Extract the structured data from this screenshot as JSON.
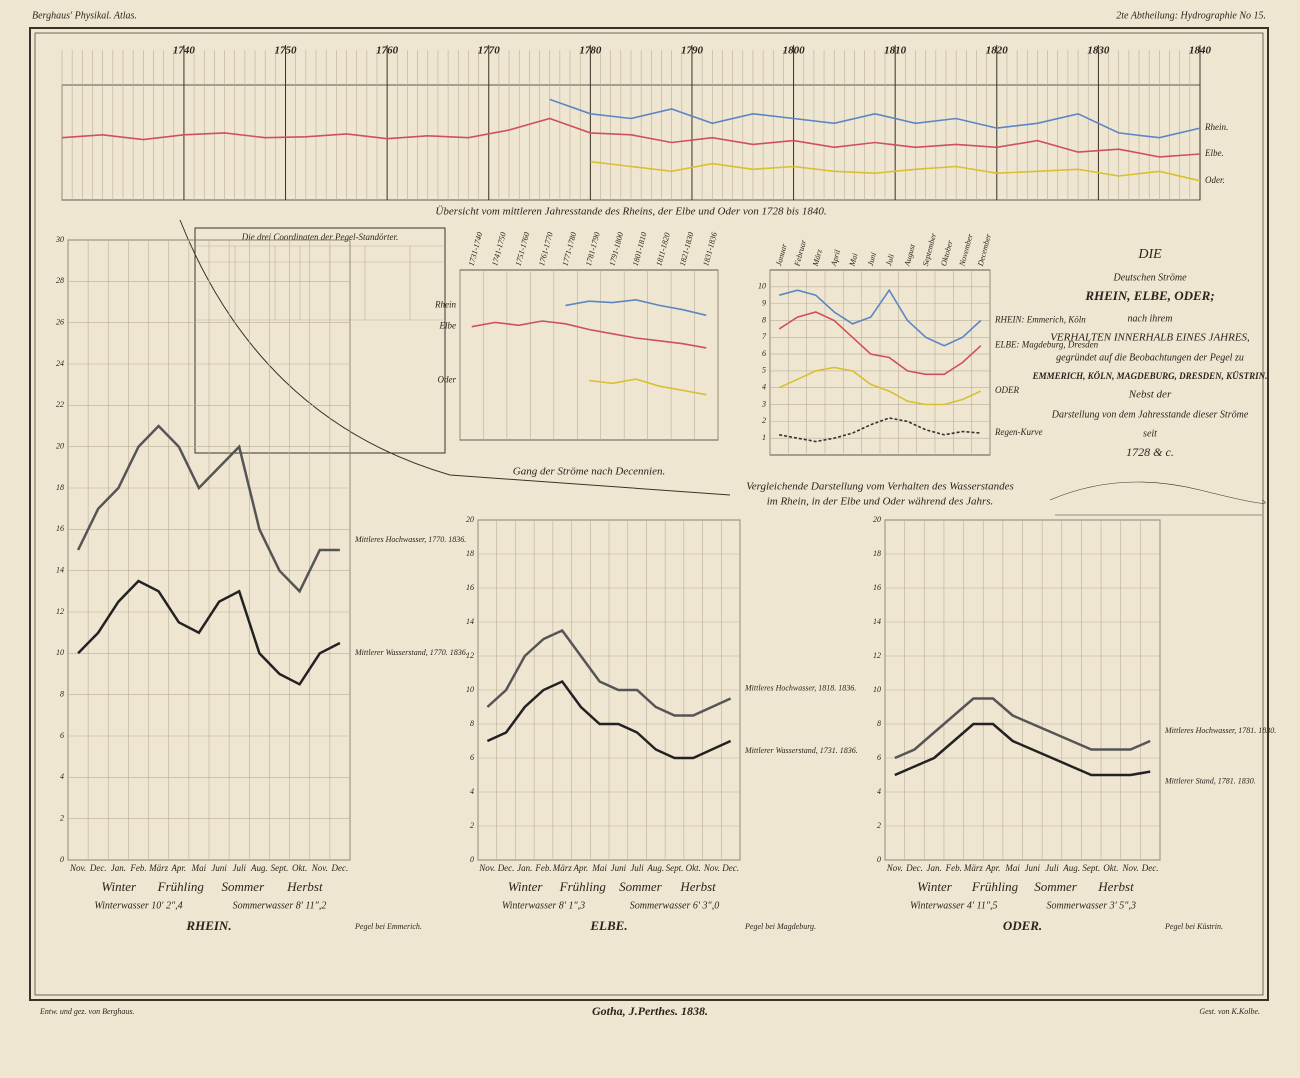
{
  "header": {
    "left": "Berghaus' Physikal. Atlas.",
    "right": "2te Abtheilung: Hydrographie No 15."
  },
  "footer": {
    "left": "Entw. und gez. von Berghaus.",
    "center": "Gotha, J.Perthes. 1838.",
    "right": "Gest. von K.Kolbe."
  },
  "title_block": {
    "lines": [
      "DIE",
      "Deutschen Ströme",
      "RHEIN, ELBE, ODER;",
      "nach ihrem",
      "VERHALTEN INNERHALB EINES JAHRES,",
      "gegründet auf die Beobachtungen der Pegel zu",
      "EMMERICH, KÖLN, MAGDEBURG, DRESDEN, KÜSTRIN.",
      "Nebst der",
      "Darstellung von dem Jahresstande dieser Ströme",
      "seit",
      "1728 & c."
    ]
  },
  "coordinates_table": {
    "title": "Die drei Coordinaten der Pegel-Standörter."
  },
  "chart_data": [
    {
      "type": "line",
      "title": "Übersicht vom mittleren Jahresstande des Rheins, der Elbe und Oder von 1728 bis 1840.",
      "x": [
        1728,
        1732,
        1736,
        1740,
        1744,
        1748,
        1752,
        1756,
        1760,
        1764,
        1768,
        1772,
        1776,
        1780,
        1784,
        1788,
        1792,
        1796,
        1800,
        1804,
        1808,
        1812,
        1816,
        1820,
        1824,
        1828,
        1832,
        1836,
        1840
      ],
      "xlim": [
        1728,
        1840
      ],
      "xticks": [
        1740,
        1750,
        1760,
        1770,
        1780,
        1790,
        1800,
        1810,
        1820,
        1830,
        1840
      ],
      "ylim": [
        0,
        12
      ],
      "series": [
        {
          "name": "Rhein.",
          "color": "#5b86c4",
          "values": [
            null,
            null,
            null,
            null,
            null,
            null,
            null,
            null,
            null,
            null,
            null,
            null,
            10.5,
            9,
            8.5,
            9.5,
            8,
            9,
            8.5,
            8,
            9,
            8,
            8.5,
            7.5,
            8,
            9,
            7,
            6.5,
            7.5
          ]
        },
        {
          "name": "Elbe.",
          "color": "#d0505a",
          "values": [
            6.5,
            6.8,
            6.3,
            6.8,
            7,
            6.5,
            6.6,
            6.9,
            6.4,
            6.7,
            6.5,
            7.3,
            8.5,
            7,
            6.8,
            6,
            6.5,
            5.8,
            6.2,
            5.5,
            6,
            5.5,
            5.8,
            5.5,
            6.2,
            5,
            5.3,
            4.5,
            4.8
          ]
        },
        {
          "name": "Oder.",
          "color": "#d8c030",
          "values": [
            null,
            null,
            null,
            null,
            null,
            null,
            null,
            null,
            null,
            null,
            null,
            null,
            null,
            4,
            3.5,
            3,
            3.8,
            3.2,
            3.5,
            3,
            2.8,
            3.2,
            3.5,
            2.8,
            3,
            3.2,
            2.5,
            3,
            2
          ]
        }
      ]
    },
    {
      "type": "line",
      "title": [
        "Gang der Ströme nach Decennien."
      ],
      "categories": [
        "1731-1740",
        "1741-1750",
        "1751-1760",
        "1761-1770",
        "1771-1780",
        "1781-1790",
        "1791-1800",
        "1801-1810",
        "1811-1820",
        "1821-1830",
        "1831-1836"
      ],
      "ylim": [
        0,
        12
      ],
      "series": [
        {
          "name": "Rhein",
          "color": "#5b86c4",
          "values": [
            null,
            null,
            null,
            null,
            9.5,
            9.8,
            9.7,
            9.9,
            9.5,
            9.2,
            8.8
          ]
        },
        {
          "name": "Elbe",
          "color": "#d0505a",
          "values": [
            8,
            8.3,
            8.1,
            8.4,
            8.2,
            7.8,
            7.5,
            7.2,
            7,
            6.8,
            6.5
          ]
        },
        {
          "name": "Oder",
          "color": "#d8c030",
          "values": [
            null,
            null,
            null,
            null,
            null,
            4.2,
            4,
            4.3,
            3.8,
            3.5,
            3.2
          ]
        }
      ]
    },
    {
      "type": "line",
      "title": [
        "Vergleichende Darstellung vom Verhalten des Wasserstandes",
        "im Rhein, in der Elbe und Oder während des Jahrs."
      ],
      "categories": [
        "Januar",
        "Februar",
        "März",
        "April",
        "Mai",
        "Juni",
        "Juli",
        "August",
        "September",
        "Oktober",
        "November",
        "December"
      ],
      "ylim": [
        0,
        11
      ],
      "yticks": [
        1,
        2,
        3,
        4,
        5,
        6,
        7,
        8,
        9,
        10
      ],
      "series": [
        {
          "name": "RHEIN: Emmerich, Köln",
          "color": "#5b86c4",
          "values": [
            9.5,
            9.8,
            9.5,
            8.5,
            7.8,
            8.2,
            9.8,
            8,
            7,
            6.5,
            7,
            8
          ]
        },
        {
          "name": "ELBE: Magdeburg, Dresden",
          "color": "#d0505a",
          "values": [
            7.5,
            8.2,
            8.5,
            8,
            7,
            6,
            5.8,
            5,
            4.8,
            4.8,
            5.5,
            6.5
          ]
        },
        {
          "name": "ODER",
          "color": "#d8c030",
          "values": [
            4,
            4.5,
            5,
            5.2,
            5,
            4.2,
            3.8,
            3.2,
            3,
            3,
            3.3,
            3.8
          ]
        },
        {
          "name": "Regen-Kurve",
          "color": "#333333",
          "values": [
            1.2,
            1,
            0.8,
            1,
            1.3,
            1.8,
            2.2,
            2,
            1.5,
            1.2,
            1.4,
            1.3
          ]
        }
      ]
    },
    {
      "type": "line",
      "title": "RHEIN.",
      "gauge": "Pegel bei Emmerich.",
      "note": [
        "Winterwasser 10′ 2″,4",
        "Sommerwasser 8′ 11″,2"
      ],
      "seasons": [
        "Winter",
        "Frühling",
        "Sommer",
        "Herbst"
      ],
      "categories": [
        "Nov.",
        "Dec.",
        "Jan.",
        "Feb.",
        "März",
        "Apr.",
        "Mai",
        "Juni",
        "Juli",
        "Aug.",
        "Sept.",
        "Okt.",
        "Nov.",
        "Dec."
      ],
      "ylim": [
        0,
        30
      ],
      "yticks": [
        0,
        2,
        4,
        6,
        8,
        10,
        12,
        14,
        16,
        18,
        20,
        22,
        24,
        26,
        28,
        30
      ],
      "series": [
        {
          "name": "Mittleres Hochwasser, 1770. 1836.",
          "color": "#555555",
          "values": [
            15,
            17,
            18,
            20,
            21,
            20,
            18,
            19,
            20,
            16,
            14,
            13,
            15,
            15
          ]
        },
        {
          "name": "Mittlerer Wasserstand, 1770. 1836.",
          "color": "#222222",
          "values": [
            10,
            11,
            12.5,
            13.5,
            13,
            11.5,
            11,
            12.5,
            13,
            10,
            9,
            8.5,
            10,
            10.5
          ]
        }
      ]
    },
    {
      "type": "line",
      "title": "ELBE.",
      "gauge": "Pegel bei Magdeburg.",
      "note": [
        "Winterwasser 8′ 1″,3",
        "Sommerwasser 6′ 3″,0"
      ],
      "seasons": [
        "Winter",
        "Frühling",
        "Sommer",
        "Herbst"
      ],
      "categories": [
        "Nov.",
        "Dec.",
        "Jan.",
        "Feb.",
        "März",
        "Apr.",
        "Mai",
        "Juni",
        "Juli",
        "Aug.",
        "Sept.",
        "Okt.",
        "Nov.",
        "Dec."
      ],
      "ylim": [
        0,
        20
      ],
      "yticks": [
        0,
        2,
        4,
        6,
        8,
        10,
        12,
        14,
        16,
        18,
        20
      ],
      "series": [
        {
          "name": "Mittleres Hochwasser, 1818. 1836.",
          "color": "#555555",
          "values": [
            9,
            10,
            12,
            13,
            13.5,
            12,
            10.5,
            10,
            10,
            9,
            8.5,
            8.5,
            9,
            9.5
          ]
        },
        {
          "name": "Mittlerer Wasserstand, 1731. 1836.",
          "color": "#222222",
          "values": [
            7,
            7.5,
            9,
            10,
            10.5,
            9,
            8,
            8,
            7.5,
            6.5,
            6,
            6,
            6.5,
            7
          ]
        }
      ]
    },
    {
      "type": "line",
      "title": "ODER.",
      "gauge": "Pegel bei Küstrin.",
      "note": [
        "Winterwasser 4′ 11″,5",
        "Sommerwasser 3′ 5″,3"
      ],
      "seasons": [
        "Winter",
        "Frühling",
        "Sommer",
        "Herbst"
      ],
      "categories": [
        "Nov.",
        "Dec.",
        "Jan.",
        "Feb.",
        "März",
        "Apr.",
        "Mai",
        "Juni",
        "Juli",
        "Aug.",
        "Sept.",
        "Okt.",
        "Nov.",
        "Dec."
      ],
      "ylim": [
        0,
        20
      ],
      "yticks": [
        0,
        2,
        4,
        6,
        8,
        10,
        12,
        14,
        16,
        18,
        20
      ],
      "series": [
        {
          "name": "Mittleres Hochwasser, 1781. 1830.",
          "color": "#555555",
          "values": [
            6,
            6.5,
            7.5,
            8.5,
            9.5,
            9.5,
            8.5,
            8,
            7.5,
            7,
            6.5,
            6.5,
            6.5,
            7
          ]
        },
        {
          "name": "Mittlerer Stand, 1781. 1830.",
          "color": "#222222",
          "values": [
            5,
            5.5,
            6,
            7,
            8,
            8,
            7,
            6.5,
            6,
            5.5,
            5,
            5,
            5,
            5.2
          ]
        }
      ]
    }
  ]
}
